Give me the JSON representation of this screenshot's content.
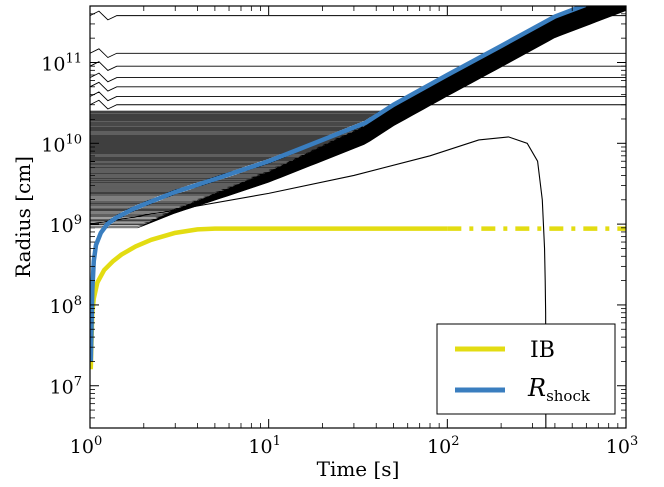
{
  "chart_data": {
    "type": "line",
    "xlabel": "Time [s]",
    "ylabel": "Radius [cm]",
    "xscale": "log",
    "yscale": "log",
    "xlim": [
      1,
      1000
    ],
    "ylim": [
      3000000.0,
      500000000000.0
    ],
    "grid": false,
    "legend_position": "lower-right",
    "x_ticks": [
      {
        "value": 1,
        "base": "10",
        "exp": "0"
      },
      {
        "value": 10,
        "base": "10",
        "exp": "1"
      },
      {
        "value": 100,
        "base": "10",
        "exp": "2"
      },
      {
        "value": 1000,
        "base": "10",
        "exp": "3"
      }
    ],
    "y_ticks": [
      {
        "value": 10000000,
        "base": "10",
        "exp": "7"
      },
      {
        "value": 100000000,
        "base": "10",
        "exp": "8"
      },
      {
        "value": 1000000000,
        "base": "10",
        "exp": "9"
      },
      {
        "value": 10000000000,
        "base": "10",
        "exp": "10"
      },
      {
        "value": 100000000000,
        "base": "10",
        "exp": "11"
      }
    ],
    "series": [
      {
        "name": "IB",
        "color": "#e3dc12",
        "style": "solid then dash-dot after t=100 s",
        "x": [
          1.01,
          1.03,
          1.05,
          1.1,
          1.2,
          1.35,
          1.5,
          1.8,
          2.2,
          3.0,
          4.0,
          5.0,
          10,
          30,
          100,
          300,
          1000
        ],
        "y": [
          16000000,
          80000000,
          120000000,
          190000000,
          270000000,
          350000000,
          420000000,
          530000000,
          640000000,
          780000000,
          860000000,
          880000000,
          880000000,
          880000000,
          880000000,
          880000000,
          880000000
        ]
      },
      {
        "name": "R_shock",
        "label_main": "R",
        "label_sub": "shock",
        "color": "#3a7ebf",
        "x": [
          1.01,
          1.03,
          1.05,
          1.08,
          1.15,
          1.25,
          1.4,
          1.7,
          2.0,
          3.0,
          5.0,
          10,
          20,
          35,
          50,
          100,
          200,
          400,
          600
        ],
        "y": [
          20000000,
          150000000,
          350000000,
          550000000,
          780000000,
          1000000000,
          1200000000,
          1500000000,
          1750000000,
          2500000000,
          3600000000,
          6000000000,
          11000000000,
          18000000000,
          30000000000,
          70000000000,
          160000000000,
          370000000000,
          520000000000
        ]
      }
    ],
    "mass_shells": {
      "color": "#000000",
      "description": "Lagrangian mass-shell radius trajectories",
      "static_radii_initial": [
        380000000000,
        130000000000,
        90000000000,
        65000000000,
        50000000000,
        38000000000,
        30000000000
      ],
      "dense_band_range": [
        900000000,
        25000000000
      ],
      "num_dense_shells": 110,
      "falling_shell": {
        "x": [
          1.0,
          1.5,
          3.0,
          10,
          30,
          80,
          150,
          220,
          280,
          320,
          340,
          350,
          353,
          355,
          356
        ],
        "y": [
          1000000000,
          1150000000,
          1500000000,
          2400000000,
          4000000000,
          7000000000,
          11000000000,
          12000000000,
          10000000000,
          6000000000,
          2000000000,
          500000000,
          200000000,
          80000000,
          3000000
        ]
      }
    }
  }
}
